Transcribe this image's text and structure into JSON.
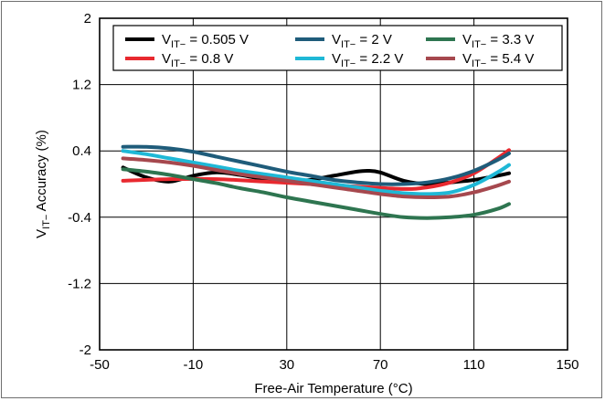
{
  "chart_data": {
    "type": "line",
    "title": "",
    "xlabel": "Free-Air Temperature (°C)",
    "ylabel": {
      "main": "V",
      "sub": "IT−",
      "rest": " Accuracy (%)"
    },
    "xlim": [
      -50,
      150
    ],
    "ylim": [
      -2,
      2
    ],
    "x_ticks": [
      -50,
      -10,
      30,
      70,
      110,
      150
    ],
    "y_ticks": [
      -2,
      -1.2,
      -0.4,
      0.4,
      1.2,
      2
    ],
    "x_tick_labels": [
      "-50",
      "-10",
      "30",
      "70",
      "110",
      "150"
    ],
    "y_tick_labels": [
      "-2",
      "-1.2",
      "-0.4",
      "0.4",
      "1.2",
      "2"
    ],
    "grid": true,
    "legend_position": "top-right",
    "series": [
      {
        "name": "V<sub>IT−</sub> = 0.505 V",
        "label_main": "V",
        "label_sub": "IT−",
        "label_rest": " = 0.505 V",
        "color": "#000000",
        "x": [
          -40,
          -30,
          -20,
          -10,
          0,
          10,
          20,
          30,
          40,
          50,
          60,
          65,
          70,
          80,
          90,
          100,
          110,
          120,
          125
        ],
        "y": [
          0.2,
          0.08,
          0.03,
          0.1,
          0.14,
          0.11,
          0.06,
          0.03,
          0.05,
          0.1,
          0.15,
          0.16,
          0.14,
          0.04,
          0.0,
          0.02,
          0.05,
          0.1,
          0.13
        ]
      },
      {
        "name": "V<sub>IT−</sub> = 0.8 V",
        "label_main": "V",
        "label_sub": "IT−",
        "label_rest": " = 0.8 V",
        "color": "#e8292f",
        "x": [
          -40,
          -20,
          0,
          20,
          40,
          60,
          80,
          90,
          100,
          110,
          120,
          125
        ],
        "y": [
          0.04,
          0.06,
          0.06,
          0.03,
          0.0,
          -0.03,
          -0.06,
          -0.04,
          0.02,
          0.13,
          0.31,
          0.41
        ]
      },
      {
        "name": "V<sub>IT−</sub> = 2 V",
        "label_main": "V",
        "label_sub": "IT−",
        "label_rest": " = 2 V",
        "color": "#1f5c7a",
        "x": [
          -40,
          -30,
          -20,
          -10,
          0,
          10,
          20,
          30,
          40,
          50,
          60,
          70,
          80,
          90,
          100,
          110,
          120,
          125
        ],
        "y": [
          0.45,
          0.45,
          0.43,
          0.39,
          0.33,
          0.27,
          0.21,
          0.15,
          0.1,
          0.05,
          0.02,
          0.0,
          0.0,
          0.02,
          0.07,
          0.16,
          0.29,
          0.37
        ]
      },
      {
        "name": "V<sub>IT−</sub> = 2.2 V",
        "label_main": "V",
        "label_sub": "IT−",
        "label_rest": " = 2.2 V",
        "color": "#1fb8d6",
        "x": [
          -40,
          -30,
          -20,
          -10,
          0,
          10,
          20,
          30,
          40,
          50,
          60,
          70,
          80,
          90,
          100,
          110,
          120,
          125
        ],
        "y": [
          0.4,
          0.36,
          0.31,
          0.26,
          0.21,
          0.16,
          0.12,
          0.08,
          0.04,
          0.0,
          -0.04,
          -0.08,
          -0.11,
          -0.12,
          -0.1,
          -0.01,
          0.14,
          0.23
        ]
      },
      {
        "name": "V<sub>IT−</sub> = 3.3 V",
        "label_main": "V",
        "label_sub": "IT−",
        "label_rest": " = 3.3 V",
        "color": "#2e7550",
        "x": [
          -40,
          -30,
          -20,
          -10,
          0,
          10,
          20,
          30,
          40,
          50,
          60,
          70,
          80,
          90,
          100,
          110,
          120,
          125
        ],
        "y": [
          0.18,
          0.15,
          0.11,
          0.06,
          0.01,
          -0.05,
          -0.1,
          -0.16,
          -0.21,
          -0.26,
          -0.31,
          -0.36,
          -0.4,
          -0.41,
          -0.4,
          -0.37,
          -0.3,
          -0.24
        ]
      },
      {
        "name": "V<sub>IT−</sub> = 5.4 V",
        "label_main": "V",
        "label_sub": "IT−",
        "label_rest": " = 5.4 V",
        "color": "#a6484e",
        "x": [
          -40,
          -30,
          -20,
          -10,
          0,
          10,
          20,
          30,
          40,
          50,
          60,
          70,
          80,
          90,
          100,
          110,
          120,
          125
        ],
        "y": [
          0.31,
          0.29,
          0.26,
          0.22,
          0.17,
          0.12,
          0.08,
          0.04,
          0.0,
          -0.04,
          -0.08,
          -0.12,
          -0.15,
          -0.16,
          -0.15,
          -0.1,
          -0.02,
          0.03
        ]
      }
    ]
  }
}
